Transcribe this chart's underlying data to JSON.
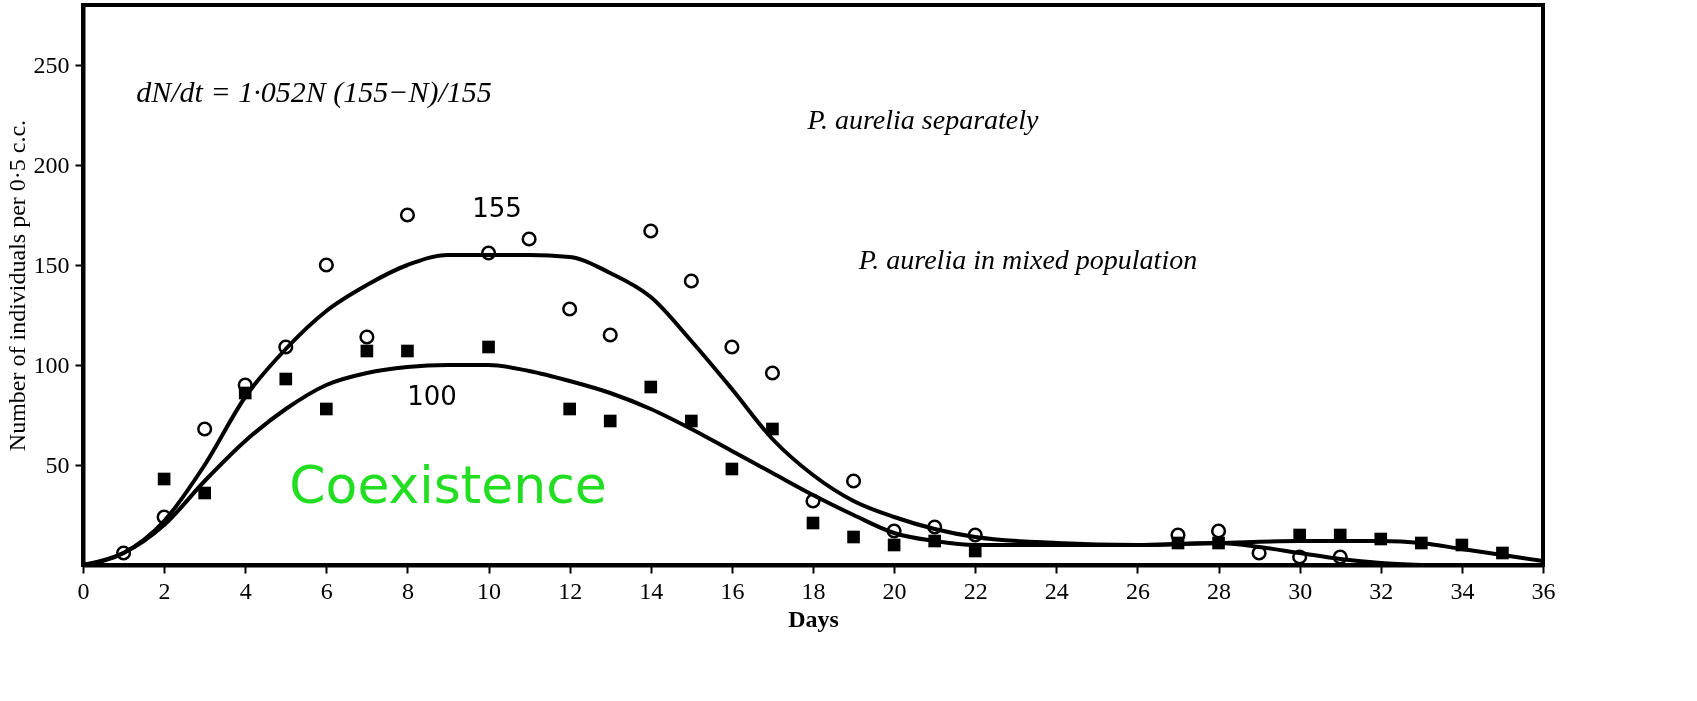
{
  "chart_data": {
    "type": "scatter",
    "xlabel": "Days",
    "ylabel": "Number of individuals per 0·5 c.c.",
    "xlim": [
      0,
      36
    ],
    "xticks": [
      0,
      2,
      4,
      6,
      8,
      10,
      12,
      14,
      16,
      18,
      20,
      22,
      24,
      26,
      28,
      30,
      32,
      34,
      36
    ],
    "ylim": [
      0,
      280
    ],
    "yticks": [
      50,
      100,
      150,
      200,
      250
    ],
    "grid": false,
    "series": [
      {
        "marker": "circle",
        "color": "#000000",
        "x": [
          1,
          2,
          3,
          4,
          5,
          6,
          7,
          8,
          10,
          11,
          12,
          13,
          14,
          15,
          16,
          17,
          18,
          19,
          20,
          21,
          22,
          27,
          28,
          29,
          30,
          31
        ],
        "values": [
          6,
          24,
          68,
          90,
          109,
          150,
          114,
          175,
          156,
          163,
          128,
          115,
          167,
          142,
          109,
          96,
          32,
          42,
          17,
          19,
          15,
          15,
          17,
          6,
          4,
          4
        ]
      },
      {
        "marker": "square",
        "color": "#000000",
        "x": [
          2,
          3,
          4,
          5,
          6,
          7,
          8,
          10,
          12,
          13,
          14,
          15,
          16,
          17,
          18,
          19,
          20,
          21,
          22,
          27,
          28,
          30,
          31,
          32,
          33,
          34,
          35
        ],
        "values": [
          43,
          36,
          86,
          93,
          78,
          107,
          107,
          109,
          78,
          72,
          89,
          72,
          48,
          68,
          21,
          14,
          10,
          12,
          7,
          11,
          11,
          15,
          15,
          13,
          11,
          10,
          6
        ]
      },
      {
        "type": "line",
        "color": "#000000",
        "x": [
          0,
          1,
          2,
          3,
          4,
          5,
          6,
          7,
          8,
          9,
          10,
          11,
          12,
          13,
          14,
          15,
          16,
          17,
          18,
          19,
          20,
          21,
          22,
          24,
          26,
          28,
          29,
          30,
          31,
          32,
          33
        ],
        "values": [
          0,
          6,
          22,
          50,
          84,
          108,
          127,
          140,
          150,
          155,
          155,
          155,
          154,
          146,
          134,
          112,
          88,
          63,
          45,
          32,
          24,
          18,
          14,
          11,
          10,
          11,
          9,
          6,
          3,
          1,
          0
        ]
      },
      {
        "type": "line",
        "color": "#000000",
        "x": [
          0,
          1,
          2,
          3,
          4,
          5,
          6,
          7,
          8,
          9,
          10,
          11,
          12,
          13,
          14,
          15,
          16,
          17,
          18,
          19,
          20,
          21,
          22,
          24,
          26,
          28,
          30,
          32,
          33,
          34,
          35,
          36
        ],
        "values": [
          0,
          6,
          20,
          42,
          62,
          78,
          90,
          96,
          99,
          100,
          100,
          97,
          92,
          86,
          78,
          68,
          57,
          46,
          35,
          25,
          16,
          12,
          10,
          10,
          10,
          11,
          12,
          12,
          11,
          8,
          5,
          2
        ]
      }
    ],
    "annotations": [
      "dN/dt = 1·052N (155−N)/155",
      "155",
      "100",
      "P. aurelia separately",
      "P. aurelia in mixed population",
      "Coexistence"
    ]
  }
}
